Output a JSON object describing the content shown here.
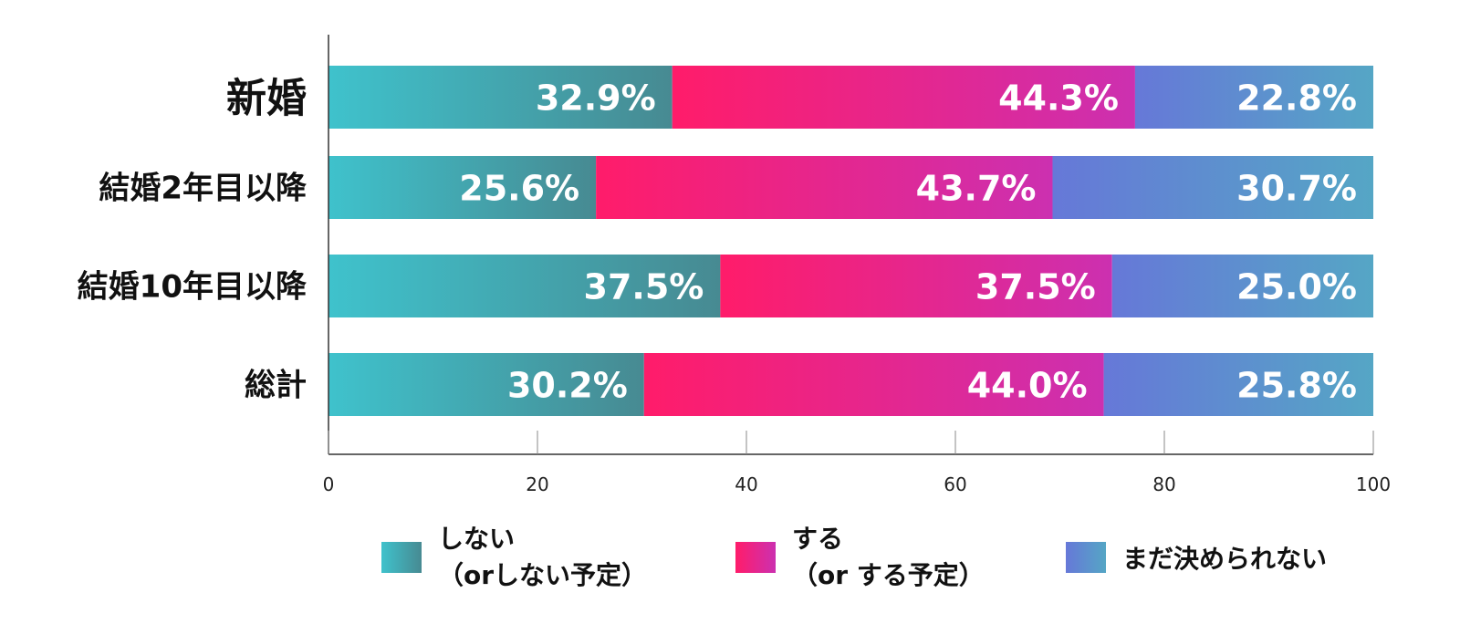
{
  "chart_data": {
    "type": "bar",
    "orientation": "horizontal",
    "stacked": true,
    "categories": [
      "新婚",
      "結婚2年目以降",
      "結婚10年目以降",
      "総計"
    ],
    "series": [
      {
        "name": "しない\n(orしない予定)",
        "legend_lines": [
          "しない",
          "（orしない予定）"
        ],
        "values": [
          32.9,
          25.6,
          37.5,
          30.2
        ],
        "labels": [
          "32.9%",
          "25.6%",
          "37.5%",
          "30.2%"
        ],
        "color_start": "#3fc2cc",
        "color_end": "#478a92"
      },
      {
        "name": "する\n(orする予定)",
        "legend_lines": [
          "する",
          "（or する予定）"
        ],
        "values": [
          44.3,
          43.7,
          37.5,
          44.0
        ],
        "labels": [
          "44.3%",
          "43.7%",
          "37.5%",
          "44.0%"
        ],
        "color_start": "#ff1c6a",
        "color_end": "#cc30b0"
      },
      {
        "name": "まだ決められない",
        "legend_lines": [
          "まだ決められない"
        ],
        "values": [
          22.8,
          30.7,
          25.0,
          25.8
        ],
        "labels": [
          "22.8%",
          "30.7%",
          "25.0%",
          "25.8%"
        ],
        "color_start": "#6678d8",
        "color_end": "#55a6c5"
      }
    ],
    "xlim": [
      0,
      100
    ],
    "xticks": [
      "0",
      "20",
      "40",
      "60",
      "80",
      "100"
    ],
    "legend_position": "bottom",
    "grid": false
  }
}
